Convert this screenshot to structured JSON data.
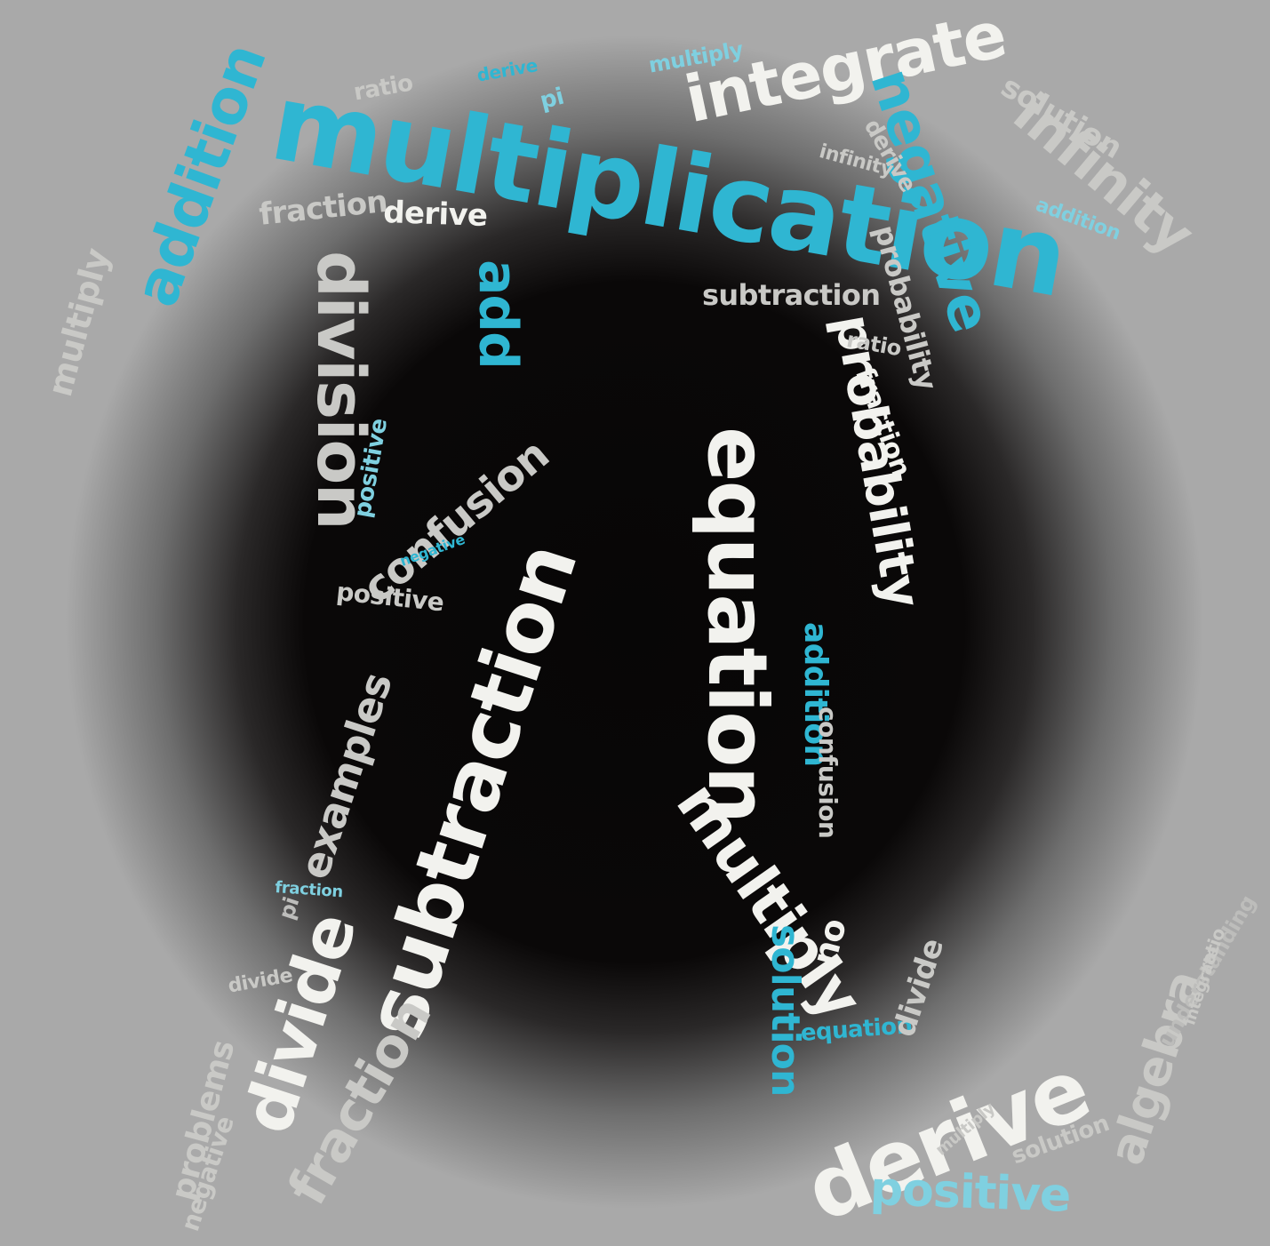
{
  "image": {
    "description_words": [
      "multiplication",
      "integrate",
      "negative",
      "infinity",
      "addition",
      "multiply",
      "division",
      "add",
      "subtraction",
      "equation",
      "probability",
      "derive",
      "positive",
      "divide",
      "fraction",
      "examples",
      "ratio",
      "confusion",
      "multiply",
      "addition",
      "solution",
      "no",
      "algebra",
      "understanding",
      "problems",
      "pi",
      "positive",
      "derive",
      "probability",
      "negative",
      "fraction",
      "derive",
      "solution",
      "integrate",
      "probability",
      "infinity",
      "subtraction",
      "ratio",
      "confusion",
      "multiply",
      "positive",
      "equation",
      "integrate",
      "ratio",
      "pi",
      "divide",
      "problems",
      "negative",
      "fraction",
      "pi",
      "division",
      "equation",
      "multiply"
    ]
  },
  "palette": {
    "background_center": "#070606",
    "background_edge": "#a9a9a9",
    "cyan": "#2fb6d2",
    "light_cyan": "#7fd0e0",
    "white": "#f2f2ee",
    "grey": "#c9c9c6"
  }
}
